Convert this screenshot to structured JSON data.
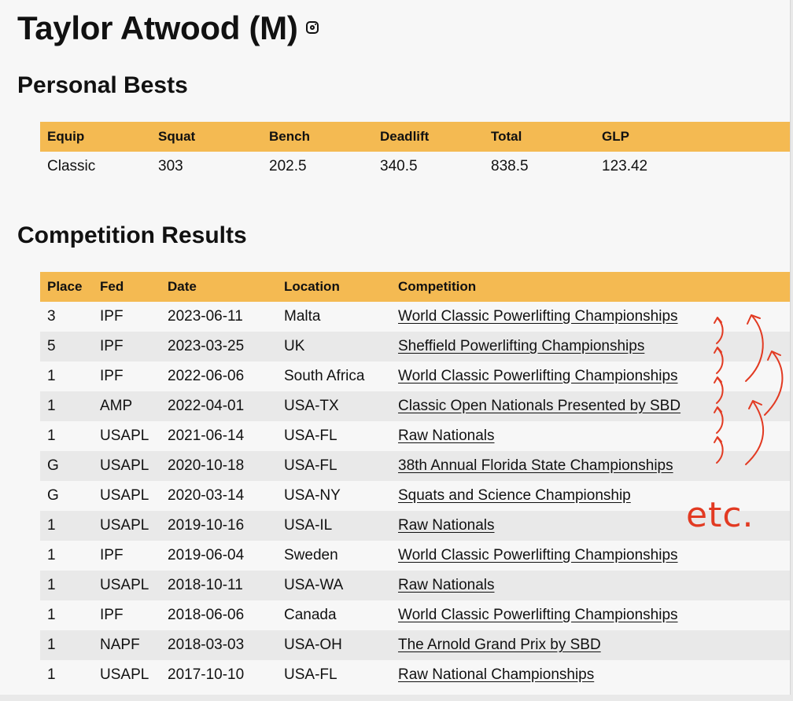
{
  "athlete": {
    "name": "Taylor Atwood (M)",
    "instagram_icon": "instagram-icon"
  },
  "personal_bests": {
    "title": "Personal Bests",
    "headers": [
      "Equip",
      "Squat",
      "Bench",
      "Deadlift",
      "Total",
      "GLP"
    ],
    "rows": [
      [
        "Classic",
        "303",
        "202.5",
        "340.5",
        "838.5",
        "123.42"
      ]
    ]
  },
  "competition_results": {
    "title": "Competition Results",
    "headers": [
      "Place",
      "Fed",
      "Date",
      "Location",
      "Competition"
    ],
    "rows": [
      [
        "3",
        "IPF",
        "2023-06-11",
        "Malta",
        "World Classic Powerlifting Championships"
      ],
      [
        "5",
        "IPF",
        "2023-03-25",
        "UK",
        "Sheffield Powerlifting Championships"
      ],
      [
        "1",
        "IPF",
        "2022-06-06",
        "South Africa",
        "World Classic Powerlifting Championships"
      ],
      [
        "1",
        "AMP",
        "2022-04-01",
        "USA-TX",
        "Classic Open Nationals Presented by SBD"
      ],
      [
        "1",
        "USAPL",
        "2021-06-14",
        "USA-FL",
        "Raw Nationals"
      ],
      [
        "G",
        "USAPL",
        "2020-10-18",
        "USA-FL",
        "38th Annual Florida State Championships"
      ],
      [
        "G",
        "USAPL",
        "2020-03-14",
        "USA-NY",
        "Squats and Science Championship"
      ],
      [
        "1",
        "USAPL",
        "2019-10-16",
        "USA-IL",
        "Raw Nationals"
      ],
      [
        "1",
        "IPF",
        "2019-06-04",
        "Sweden",
        "World Classic Powerlifting Championships"
      ],
      [
        "1",
        "USAPL",
        "2018-10-11",
        "USA-WA",
        "Raw Nationals"
      ],
      [
        "1",
        "IPF",
        "2018-06-06",
        "Canada",
        "World Classic Powerlifting Championships"
      ],
      [
        "1",
        "NAPF",
        "2018-03-03",
        "USA-OH",
        "The Arnold Grand Prix by SBD"
      ],
      [
        "1",
        "USAPL",
        "2017-10-10",
        "USA-FL",
        "Raw National Championships"
      ]
    ]
  },
  "annotation": {
    "text": "etc.",
    "color": "#e23a22"
  },
  "colors": {
    "header_bg": "#f4ba52",
    "row_alt_bg": "#e9e9e9",
    "page_bg": "#f7f7f7"
  }
}
